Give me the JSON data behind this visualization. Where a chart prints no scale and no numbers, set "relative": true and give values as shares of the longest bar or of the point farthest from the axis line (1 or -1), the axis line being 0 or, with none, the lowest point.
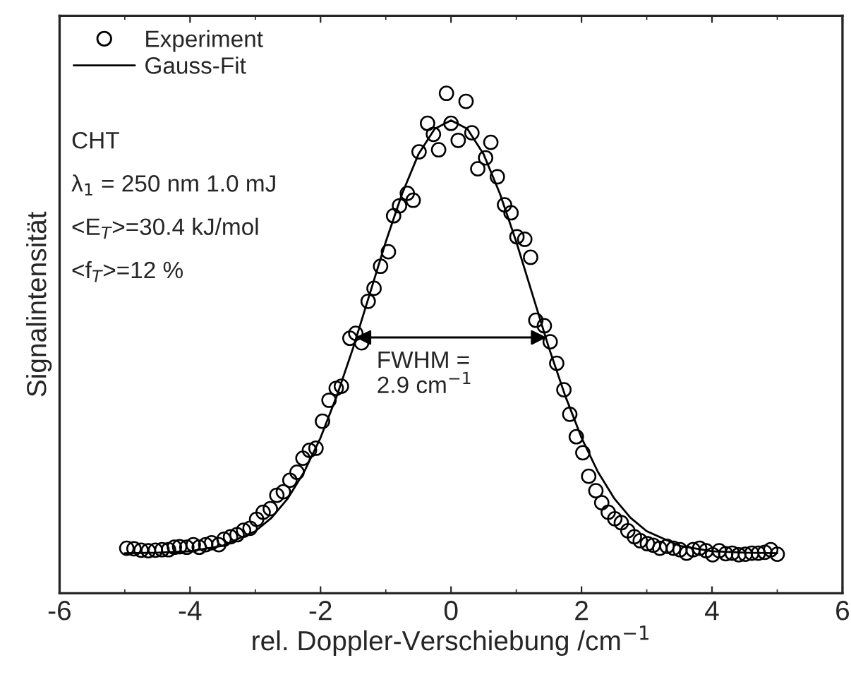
{
  "chart_data": {
    "type": "scatter",
    "relative": true,
    "xlabel": "rel. Doppler-Verschiebung /cm$^{−1}$",
    "ylabel": "Signalintensität",
    "xlim": [
      -6,
      6
    ],
    "xticks": [
      -6,
      -4,
      -2,
      0,
      2,
      4,
      6
    ],
    "legend": "top left",
    "grid": false,
    "series": [
      {
        "name": "Experiment",
        "marker": "circle",
        "color": "#000000",
        "x": [
          -4.97,
          -4.86,
          -4.75,
          -4.64,
          -4.53,
          -4.43,
          -4.33,
          -4.24,
          -4.16,
          -4.05,
          -3.95,
          -3.86,
          -3.76,
          -3.67,
          -3.56,
          -3.48,
          -3.38,
          -3.28,
          -3.18,
          -3.08,
          -2.98,
          -2.88,
          -2.77,
          -2.67,
          -2.57,
          -2.47,
          -2.36,
          -2.27,
          -2.17,
          -2.07,
          -1.97,
          -1.87,
          -1.76,
          -1.68,
          -1.55,
          -1.46,
          -1.37,
          -1.27,
          -1.18,
          -1.08,
          -0.96,
          -0.88,
          -0.79,
          -0.67,
          -0.58,
          -0.49,
          -0.36,
          -0.27,
          -0.19,
          -0.07,
          0.0,
          0.11,
          0.23,
          0.32,
          0.41,
          0.53,
          0.61,
          0.71,
          0.82,
          0.92,
          1.01,
          1.13,
          1.22,
          1.3,
          1.43,
          1.52,
          1.62,
          1.73,
          1.82,
          1.92,
          2.02,
          2.11,
          2.22,
          2.31,
          2.41,
          2.51,
          2.61,
          2.71,
          2.81,
          2.9,
          3.01,
          3.1,
          3.2,
          3.31,
          3.41,
          3.51,
          3.61,
          3.71,
          3.81,
          3.91,
          4.01,
          4.11,
          4.21,
          4.31,
          4.41,
          4.51,
          4.61,
          4.71,
          4.81,
          4.9,
          5.0
        ],
        "values": [
          0.09,
          0.089,
          0.086,
          0.085,
          0.086,
          0.087,
          0.087,
          0.092,
          0.093,
          0.092,
          0.097,
          0.092,
          0.097,
          0.101,
          0.097,
          0.108,
          0.113,
          0.117,
          0.126,
          0.13,
          0.148,
          0.162,
          0.169,
          0.196,
          0.203,
          0.226,
          0.242,
          0.27,
          0.286,
          0.29,
          0.344,
          0.386,
          0.41,
          0.414,
          0.51,
          0.52,
          0.501,
          0.584,
          0.61,
          0.654,
          0.683,
          0.755,
          0.775,
          0.8,
          0.786,
          0.883,
          0.94,
          0.918,
          0.887,
          1.0,
          0.94,
          0.906,
          0.984,
          0.921,
          0.849,
          0.871,
          0.902,
          0.833,
          0.777,
          0.761,
          0.713,
          0.708,
          0.672,
          0.546,
          0.535,
          0.503,
          0.46,
          0.407,
          0.358,
          0.313,
          0.281,
          0.234,
          0.205,
          0.181,
          0.162,
          0.149,
          0.141,
          0.125,
          0.113,
          0.105,
          0.099,
          0.096,
          0.09,
          0.094,
          0.09,
          0.087,
          0.08,
          0.087,
          0.09,
          0.085,
          0.077,
          0.085,
          0.079,
          0.08,
          0.077,
          0.078,
          0.08,
          0.08,
          0.082,
          0.087,
          0.078
        ]
      },
      {
        "name": "Gauss-Fit",
        "type": "line",
        "line_style": "solid",
        "color": "#000000",
        "x": [
          -5,
          -4.5,
          -4,
          -3.5,
          -3,
          -2.75,
          -2.5,
          -2.25,
          -2,
          -1.75,
          -1.5,
          -1.25,
          -1,
          -0.75,
          -0.5,
          -0.25,
          0,
          0.25,
          0.5,
          0.75,
          1,
          1.25,
          1.5,
          1.75,
          2,
          2.25,
          2.5,
          2.75,
          3,
          3.5,
          4,
          4.5,
          5
        ],
        "values": [
          0.08,
          0.081,
          0.084,
          0.095,
          0.124,
          0.151,
          0.19,
          0.243,
          0.311,
          0.395,
          0.491,
          0.597,
          0.703,
          0.799,
          0.878,
          0.929,
          0.946,
          0.929,
          0.878,
          0.799,
          0.703,
          0.597,
          0.491,
          0.395,
          0.311,
          0.243,
          0.19,
          0.151,
          0.124,
          0.095,
          0.084,
          0.081,
          0.08
        ]
      }
    ],
    "annotations": [
      "CHT",
      "λ$_{1}$ = 250 nm 1.0 mJ",
      "<E$_{T}$>=30.4 kJ/mol",
      "<f$_{T}$>=12 %",
      "FWHM =\n2.9 cm$^{−1}$"
    ]
  }
}
